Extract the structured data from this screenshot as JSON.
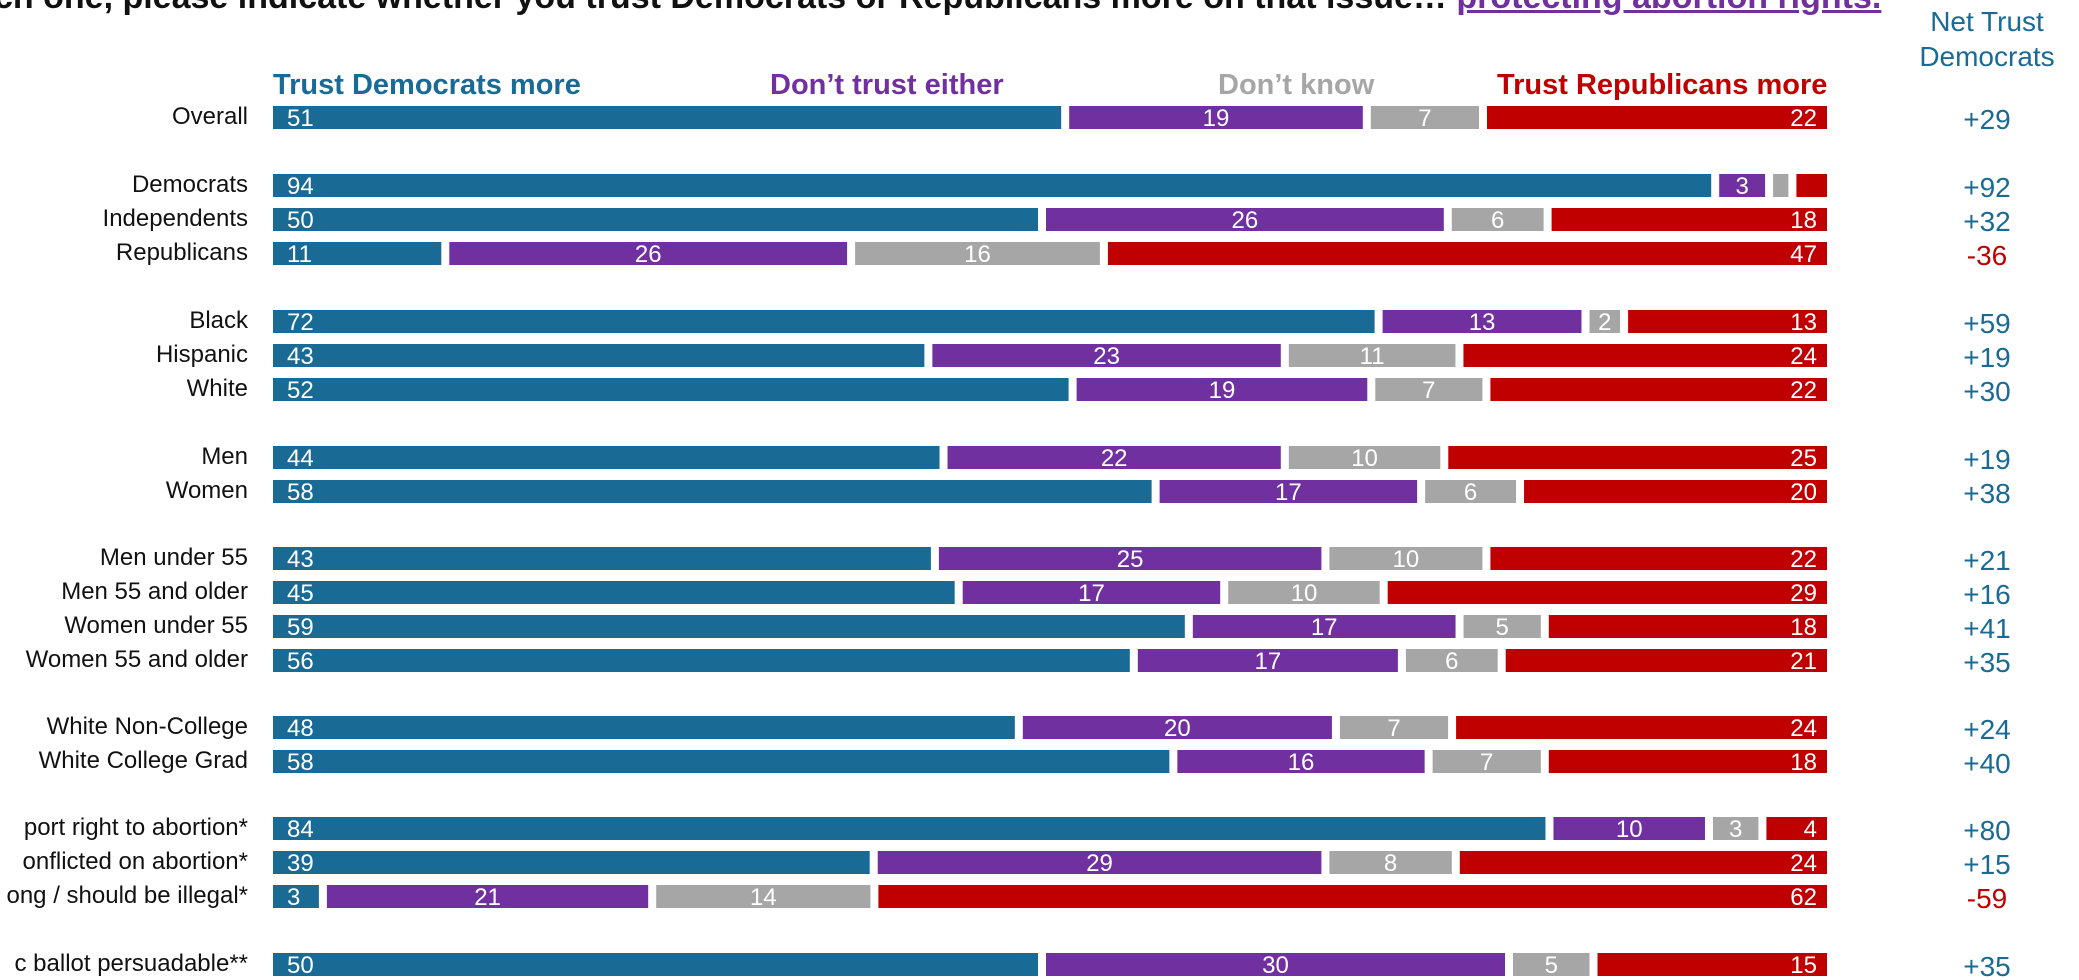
{
  "question": {
    "prefix": "ch one, please indicate whether you trust Democrats or Republicans more on that issue… ",
    "issue": "protecting abortion rights."
  },
  "net_header": [
    "Net Trust",
    "Democrats"
  ],
  "colors": {
    "dem": "#1A6A96",
    "neither": "#7030A0",
    "dontknow": "#A6A6A6",
    "rep": "#C00000",
    "net_positive": "#1A6A96",
    "net_negative": "#C00000"
  },
  "chart_data": {
    "type": "bar",
    "stacked": true,
    "orientation": "horizontal",
    "xlim": [
      0,
      100
    ],
    "series": [
      {
        "name": "Trust Democrats more",
        "color": "#1A6A96"
      },
      {
        "name": "Don’t trust either",
        "color": "#7030A0"
      },
      {
        "name": "Don’t know",
        "color": "#A6A6A6"
      },
      {
        "name": "Trust Republicans more",
        "color": "#C00000"
      }
    ],
    "groups": [
      [
        {
          "label": "Overall",
          "values": [
            51,
            19,
            7,
            22
          ],
          "net": "+29"
        }
      ],
      [
        {
          "label": "Democrats",
          "values": [
            94,
            3,
            1,
            2
          ],
          "labels": [
            "94",
            "3",
            "",
            ""
          ],
          "net": "+92"
        },
        {
          "label": "Independents",
          "values": [
            50,
            26,
            6,
            18
          ],
          "net": "+32"
        },
        {
          "label": "Republicans",
          "values": [
            11,
            26,
            16,
            47
          ],
          "net": "-36"
        }
      ],
      [
        {
          "label": "Black",
          "values": [
            72,
            13,
            2,
            13
          ],
          "net": "+59"
        },
        {
          "label": "Hispanic",
          "values": [
            43,
            23,
            11,
            24
          ],
          "net": "+19"
        },
        {
          "label": "White",
          "values": [
            52,
            19,
            7,
            22
          ],
          "net": "+30"
        }
      ],
      [
        {
          "label": "Men",
          "values": [
            44,
            22,
            10,
            25
          ],
          "net": "+19"
        },
        {
          "label": "Women",
          "values": [
            58,
            17,
            6,
            20
          ],
          "net": "+38"
        }
      ],
      [
        {
          "label": "Men under 55",
          "values": [
            43,
            25,
            10,
            22
          ],
          "net": "+21"
        },
        {
          "label": "Men 55 and older",
          "values": [
            45,
            17,
            10,
            29
          ],
          "net": "+16"
        },
        {
          "label": "Women under 55",
          "values": [
            59,
            17,
            5,
            18
          ],
          "net": "+41"
        },
        {
          "label": "Women 55 and older",
          "values": [
            56,
            17,
            6,
            21
          ],
          "net": "+35"
        }
      ],
      [
        {
          "label": "White Non-College",
          "values": [
            48,
            20,
            7,
            24
          ],
          "net": "+24"
        },
        {
          "label": "White College Grad",
          "values": [
            58,
            16,
            7,
            18
          ],
          "net": "+40"
        }
      ],
      [
        {
          "label": "port right to abortion*",
          "values": [
            84,
            10,
            3,
            4
          ],
          "net": "+80"
        },
        {
          "label": "onflicted on abortion*",
          "values": [
            39,
            29,
            8,
            24
          ],
          "net": "+15"
        },
        {
          "label": "ong / should be illegal*",
          "values": [
            3,
            21,
            14,
            62
          ],
          "net": "-59"
        }
      ],
      [
        {
          "label": "c ballot persuadable**",
          "values": [
            50,
            30,
            5,
            15
          ],
          "net": "+35"
        }
      ]
    ]
  }
}
